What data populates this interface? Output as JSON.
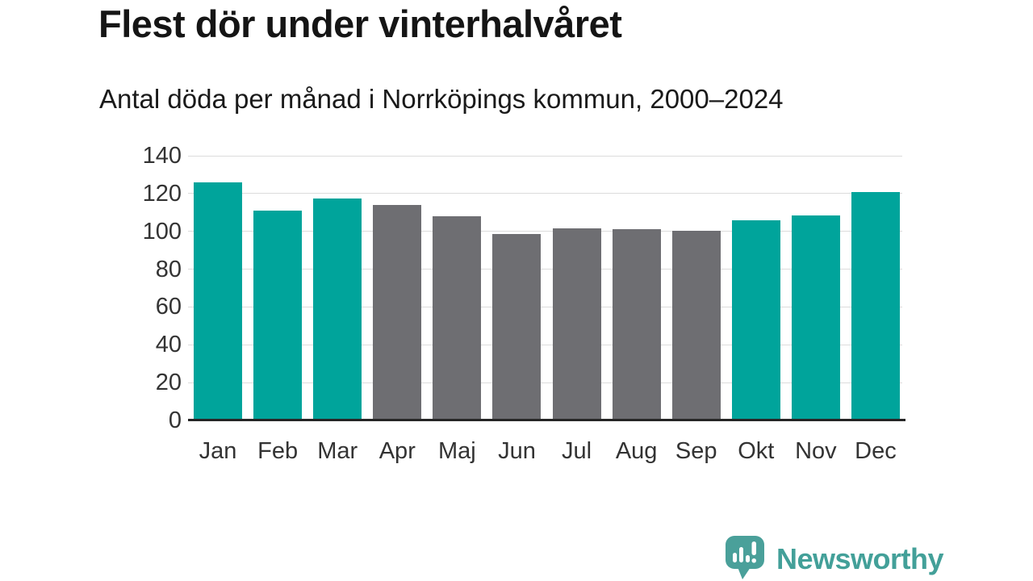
{
  "chart_data": {
    "type": "bar",
    "title": "Flest dör under vinterhalvåret",
    "subtitle": "Antal döda per månad i Norrköpings kommun, 2000–2024",
    "categories": [
      "Jan",
      "Feb",
      "Mar",
      "Apr",
      "Maj",
      "Jun",
      "Jul",
      "Aug",
      "Sep",
      "Okt",
      "Nov",
      "Dec"
    ],
    "values": [
      126,
      111,
      117.5,
      114,
      108,
      98.5,
      101.5,
      101,
      100.5,
      106,
      108.5,
      121
    ],
    "bar_color_keys": [
      "highlight",
      "highlight",
      "highlight",
      "muted",
      "muted",
      "muted",
      "muted",
      "muted",
      "muted",
      "highlight",
      "highlight",
      "highlight"
    ],
    "palette": {
      "highlight": "#00a49b",
      "muted": "#6e6e72"
    },
    "highlight_months": [
      "Jan",
      "Feb",
      "Mar",
      "Okt",
      "Nov",
      "Dec"
    ],
    "xlabel": "",
    "ylabel": "",
    "ylim": [
      0,
      140
    ],
    "y_ticks": [
      0,
      20,
      40,
      60,
      80,
      100,
      120,
      140
    ],
    "grid": "horizontal",
    "legend": "none",
    "colors": {
      "grid_line": "#dcdcdc",
      "axis_line": "#262626",
      "tick_text": "#333333",
      "title_text": "#151515"
    }
  },
  "branding": {
    "wordmark": "Newsworthy",
    "icon": "newsworthy-speech-bubble-chart-icon",
    "color": "#43a099"
  }
}
